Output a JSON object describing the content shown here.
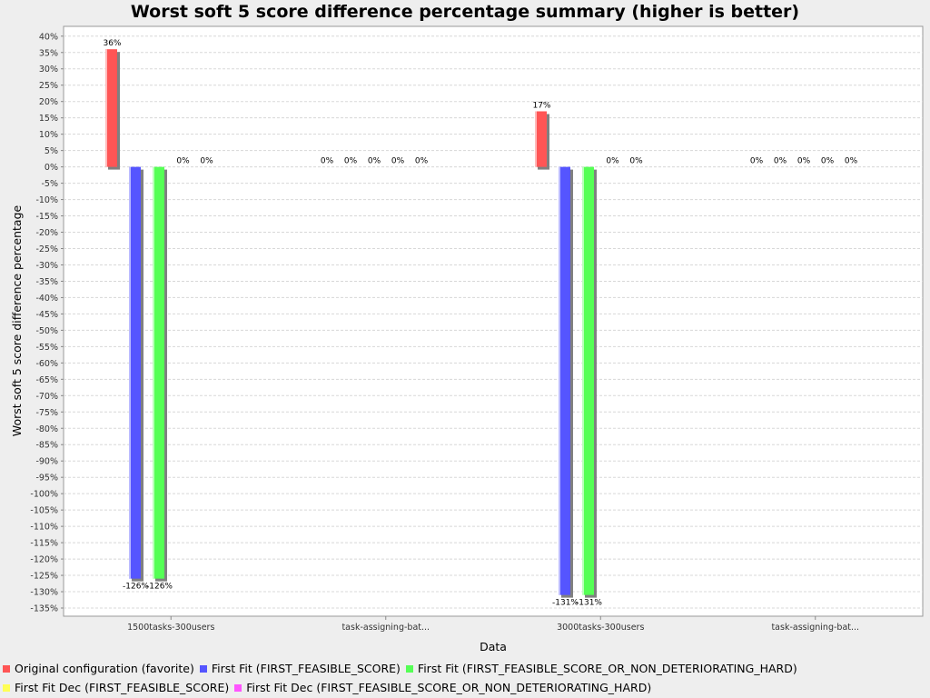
{
  "chart_data": {
    "type": "bar",
    "title": "Worst soft 5 score difference percentage summary (higher is better)",
    "xlabel": "Data",
    "ylabel": "Worst soft 5 score difference percentage",
    "ylim": [
      -137.5,
      43
    ],
    "ytick_step": 5,
    "grid": true,
    "legend_position": "bottom",
    "categories": [
      "1500tasks-300users",
      "task-assigning-bat...",
      "3000tasks-300users",
      "task-assigning-bat..."
    ],
    "series": [
      {
        "name": "Original configuration (favorite)",
        "color": "#ff5555",
        "values": [
          36,
          0,
          17,
          0
        ],
        "labels": [
          "36%",
          "0%",
          "17%",
          "0%"
        ]
      },
      {
        "name": "First Fit (FIRST_FEASIBLE_SCORE)",
        "color": "#5555ff",
        "values": [
          -126,
          0,
          -131,
          0
        ],
        "labels": [
          "-126%",
          "0%",
          "-131%",
          "0%"
        ]
      },
      {
        "name": "First Fit (FIRST_FEASIBLE_SCORE_OR_NON_DETERIORATING_HARD)",
        "color": "#55ff55",
        "values": [
          -126,
          0,
          -131,
          0
        ],
        "labels": [
          "-126%",
          "0%",
          "-131%",
          "0%"
        ]
      },
      {
        "name": "First Fit Dec (FIRST_FEASIBLE_SCORE)",
        "color": "#ffff55",
        "values": [
          0,
          0,
          0,
          0
        ],
        "labels": [
          "0%",
          "0%",
          "0%",
          "0%"
        ]
      },
      {
        "name": "First Fit Dec (FIRST_FEASIBLE_SCORE_OR_NON_DETERIORATING_HARD)",
        "color": "#ff55ff",
        "values": [
          0,
          0,
          0,
          0
        ],
        "labels": [
          "0%",
          "0%",
          "0%",
          "0%"
        ]
      }
    ],
    "legend_rows": [
      [
        0,
        1,
        2
      ],
      [
        3,
        4
      ]
    ]
  }
}
